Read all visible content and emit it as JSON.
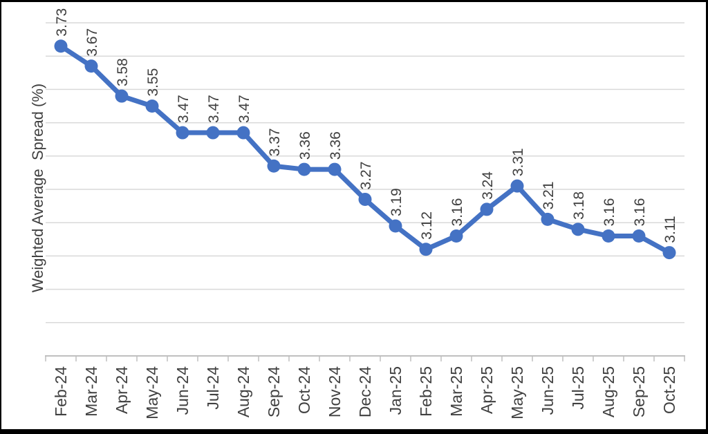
{
  "chart_data": {
    "type": "line",
    "title": "",
    "xlabel": "",
    "ylabel": "Weighted Average  Spread (%)",
    "categories": [
      "Feb-24",
      "Mar-24",
      "Apr-24",
      "May-24",
      "Jun-24",
      "Jul-24",
      "Aug-24",
      "Sep-24",
      "Oct-24",
      "Nov-24",
      "Dec-24",
      "Jan-25",
      "Feb-25",
      "Mar-25",
      "Apr-25",
      "May-25",
      "Jun-25",
      "Jul-25",
      "Aug-25",
      "Sep-25",
      "Oct-25"
    ],
    "series": [
      {
        "values": [
          3.73,
          3.67,
          3.58,
          3.55,
          3.47,
          3.47,
          3.47,
          3.37,
          3.36,
          3.36,
          3.27,
          3.19,
          3.12,
          3.16,
          3.24,
          3.31,
          3.21,
          3.18,
          3.16,
          3.16,
          3.11
        ],
        "point_labels": [
          "3.73",
          "3.67",
          "3.58",
          "3.55",
          "3.47",
          "3.47",
          "3.47",
          "3.37",
          "3.36",
          "3.36",
          "3.27",
          "3.19",
          "3.12",
          "3.16",
          "3.24",
          "3.31",
          "3.21",
          "3.18",
          "3.16",
          "3.16",
          "3.11"
        ]
      }
    ],
    "ylim": [
      2.8,
      3.8
    ],
    "grid_step": 0.1,
    "grid": true,
    "legend": false,
    "y_tick_labels_shown": false,
    "label_rotation_deg": -90,
    "colors": {
      "line": "#4472C4",
      "marker": "#4472C4",
      "gridline": "#D9D9D9",
      "axis": "#BFBFBF",
      "tick": "#BFBFBF",
      "label_text": "#404040",
      "background": "#FFFFFF",
      "frame": "#000000"
    }
  }
}
